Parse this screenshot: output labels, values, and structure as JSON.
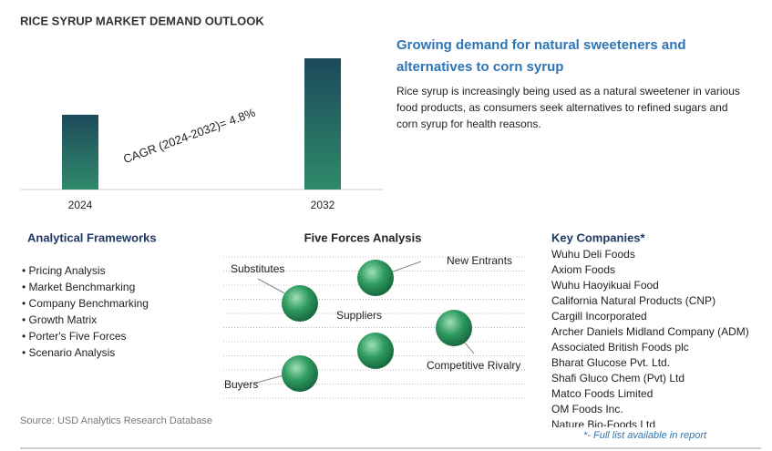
{
  "chart_data": {
    "type": "bar",
    "title": "RICE SYRUP MARKET DEMAND OUTLOOK",
    "categories": [
      "2024",
      "2032"
    ],
    "values": [
      57,
      100
    ],
    "ylim": [
      0,
      100
    ],
    "annotation": "CAGR (2024-2032)=   4.8%"
  },
  "highlight": {
    "heading": [
      "Growing demand for natural sweeteners and",
      "alternatives to corn syrup"
    ],
    "text": [
      "Rice syrup is increasingly being used as a natural sweetener in various",
      "food products, as consumers seek alternatives to refined sugars and",
      "corn syrup for health reasons."
    ]
  },
  "frameworks": {
    "title": "Analytical Frameworks",
    "items": [
      "• Pricing Analysis",
      "• Market Benchmarking",
      "• Company Benchmarking",
      "• Growth Matrix",
      "• Porter's Five Forces",
      "• Scenario Analysis"
    ]
  },
  "five_forces": {
    "title": "Five Forces Analysis",
    "labels": [
      "Substitutes",
      "New Entrants",
      "Suppliers",
      "Competitive Rivalry",
      "Buyers"
    ]
  },
  "companies": {
    "title": "Key Companies*",
    "items": [
      "Wuhu Deli Foods",
      "Axiom Foods",
      "Wuhu Haoyikuai Food",
      "California Natural Products (CNP)",
      "Cargill Incorporated",
      "Archer Daniels Midland Company (ADM)",
      "Associated British Foods plc",
      "Bharat Glucose Pvt. Ltd.",
      "Shafi Gluco Chem (Pvt) Ltd",
      "Matco Foods Limited",
      "OM Foods Inc.",
      "Nature Bio-Foods Ltd"
    ],
    "note": "*- Full list available in report"
  },
  "source": "Source: USD Analytics Research Database"
}
